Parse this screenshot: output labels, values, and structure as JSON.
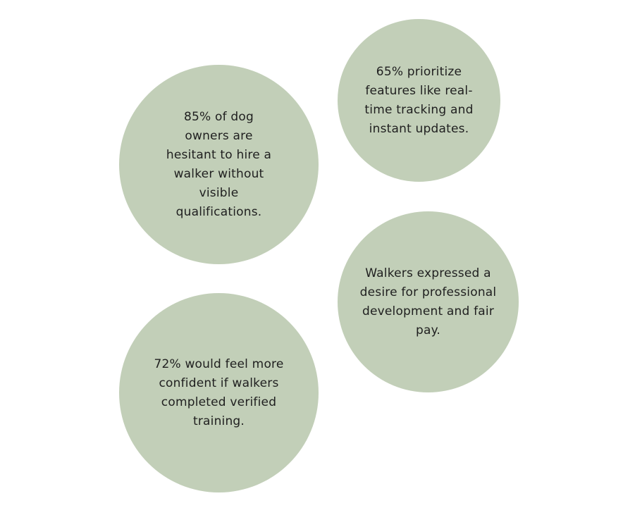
{
  "theme": {
    "bubble_color": "#c2cfb8",
    "text_color": "#1f1f1f",
    "background": "#ffffff"
  },
  "bubbles": [
    {
      "text": "85% of dog owners are hesitant to hire a walker without visible qualifications."
    },
    {
      "text": "65% prioritize features like real-time tracking and instant updates."
    },
    {
      "text": "Walkers expressed a desire for professional development and fair pay."
    },
    {
      "text": "72% would feel more confident if walkers completed verified training."
    }
  ]
}
